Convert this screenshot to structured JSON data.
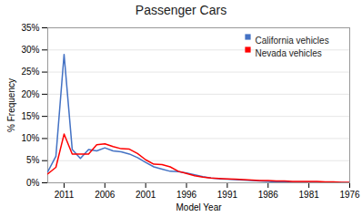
{
  "chart_data": {
    "type": "line",
    "title": "Passenger Cars",
    "xlabel": "Model Year",
    "ylabel": "% Frequency",
    "x": [
      2013,
      2012,
      2011,
      2010,
      2009,
      2008,
      2007,
      2006,
      2005,
      2004,
      2003,
      2002,
      2001,
      2000,
      1999,
      1998,
      1997,
      1996,
      1995,
      1994,
      1993,
      1992,
      1991,
      1990,
      1989,
      1988,
      1987,
      1986,
      1985,
      1984,
      1983,
      1982,
      1981,
      1980,
      1979,
      1978,
      1977,
      1976
    ],
    "series": [
      {
        "name": "California vehicles",
        "color": "#4472C4",
        "values": [
          0.025,
          0.06,
          0.29,
          0.075,
          0.055,
          0.075,
          0.072,
          0.079,
          0.072,
          0.07,
          0.065,
          0.057,
          0.046,
          0.036,
          0.031,
          0.026,
          0.025,
          0.022,
          0.018,
          0.014,
          0.011,
          0.009,
          0.008,
          0.007,
          0.006,
          0.005,
          0.004,
          0.003,
          0.002,
          0.002,
          0.001,
          0.001,
          0.001,
          0.001,
          0.001,
          0.001,
          0.0005,
          0.0
        ]
      },
      {
        "name": "Nevada vehicles",
        "color": "#FF0000",
        "values": [
          0.02,
          0.035,
          0.11,
          0.065,
          0.065,
          0.065,
          0.086,
          0.088,
          0.082,
          0.077,
          0.076,
          0.066,
          0.052,
          0.042,
          0.041,
          0.036,
          0.026,
          0.021,
          0.016,
          0.013,
          0.011,
          0.01,
          0.009,
          0.008,
          0.007,
          0.006,
          0.005,
          0.005,
          0.004,
          0.004,
          0.003,
          0.003,
          0.003,
          0.003,
          0.002,
          0.002,
          0.001,
          0.001
        ]
      }
    ],
    "xlim": [
      2013,
      1976
    ],
    "xticks": [
      2011,
      2006,
      2001,
      1996,
      1991,
      1986,
      1981,
      1976
    ],
    "ylim": [
      0,
      0.35
    ],
    "yticks": [
      {
        "value": 0,
        "label": "0%"
      },
      {
        "value": 0.05,
        "label": "5%"
      },
      {
        "value": 0.1,
        "label": "10%"
      },
      {
        "value": 0.15,
        "label": "15%"
      },
      {
        "value": 0.2,
        "label": "20%"
      },
      {
        "value": 0.25,
        "label": "25%"
      },
      {
        "value": 0.3,
        "label": "30%"
      },
      {
        "value": 0.35,
        "label": "35%"
      }
    ],
    "grid": true,
    "legend": "upper right"
  }
}
